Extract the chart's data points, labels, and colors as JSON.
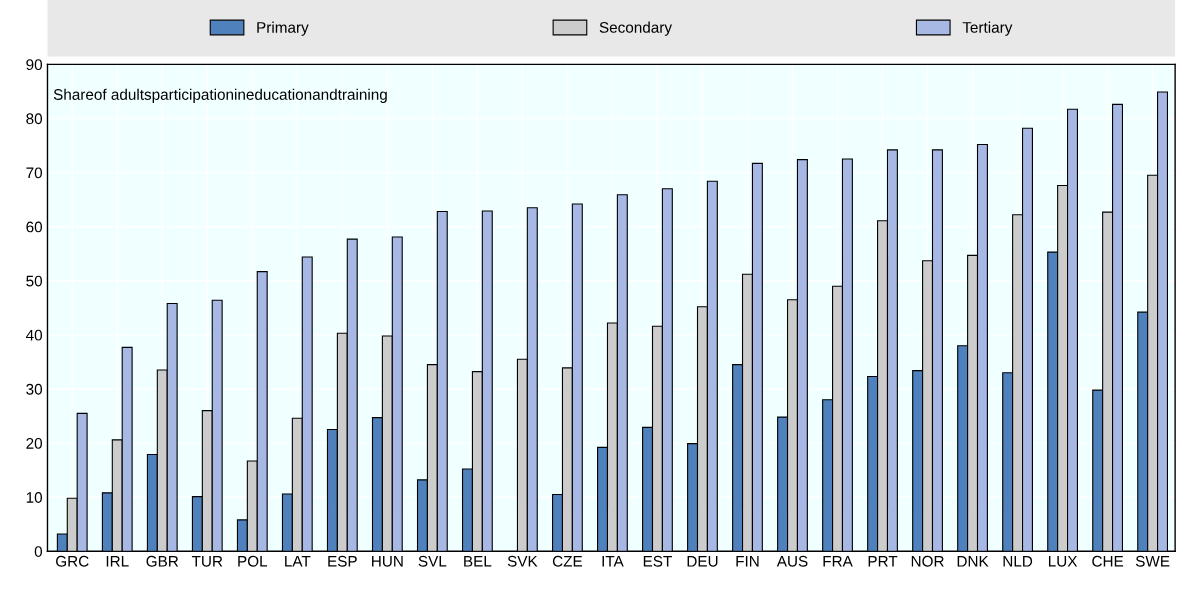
{
  "chart_data": {
    "type": "bar",
    "categories": [
      "GRC",
      "IRL",
      "GBR",
      "TUR",
      "POL",
      "LAT",
      "ESP",
      "HUN",
      "SVL",
      "BEL",
      "SVK",
      "CZE",
      "ITA",
      "EST",
      "DEU",
      "FIN",
      "AUS",
      "FRA",
      "PRT",
      "NOR",
      "DNK",
      "NLD",
      "LUX",
      "CHE",
      "SWE"
    ],
    "series": [
      {
        "name": "Primary",
        "color": "#4f81bd",
        "values": [
          3.2,
          10.8,
          17.9,
          10.1,
          5.8,
          10.6,
          22.5,
          24.7,
          13.2,
          15.2,
          null,
          10.5,
          19.2,
          22.9,
          19.9,
          34.5,
          24.8,
          28.0,
          32.3,
          33.4,
          38.0,
          33.0,
          55.3,
          29.8,
          44.2
        ]
      },
      {
        "name": "Secondary",
        "color": "#cccccc",
        "values": [
          9.8,
          20.6,
          33.5,
          26.0,
          16.7,
          24.6,
          40.3,
          39.8,
          34.5,
          33.2,
          35.5,
          33.9,
          42.2,
          41.6,
          45.2,
          51.2,
          46.5,
          49.0,
          61.1,
          53.7,
          54.7,
          62.2,
          67.6,
          62.7,
          69.5
        ]
      },
      {
        "name": "Tertiary",
        "color": "#a6b8e3",
        "values": [
          25.5,
          37.7,
          45.8,
          46.4,
          51.7,
          54.4,
          57.7,
          58.1,
          62.8,
          62.9,
          63.5,
          64.2,
          65.9,
          67.0,
          68.4,
          71.7,
          72.4,
          72.5,
          74.2,
          74.2,
          75.2,
          78.2,
          81.7,
          82.6,
          84.9
        ]
      }
    ],
    "ylim": [
      0,
      90
    ],
    "yticks": [
      0,
      10,
      20,
      30,
      40,
      50,
      60,
      70,
      80,
      90
    ],
    "annotations": [
      "Shareof adultsparticipationineducationandtraining"
    ],
    "grid": true,
    "legend": "top"
  }
}
